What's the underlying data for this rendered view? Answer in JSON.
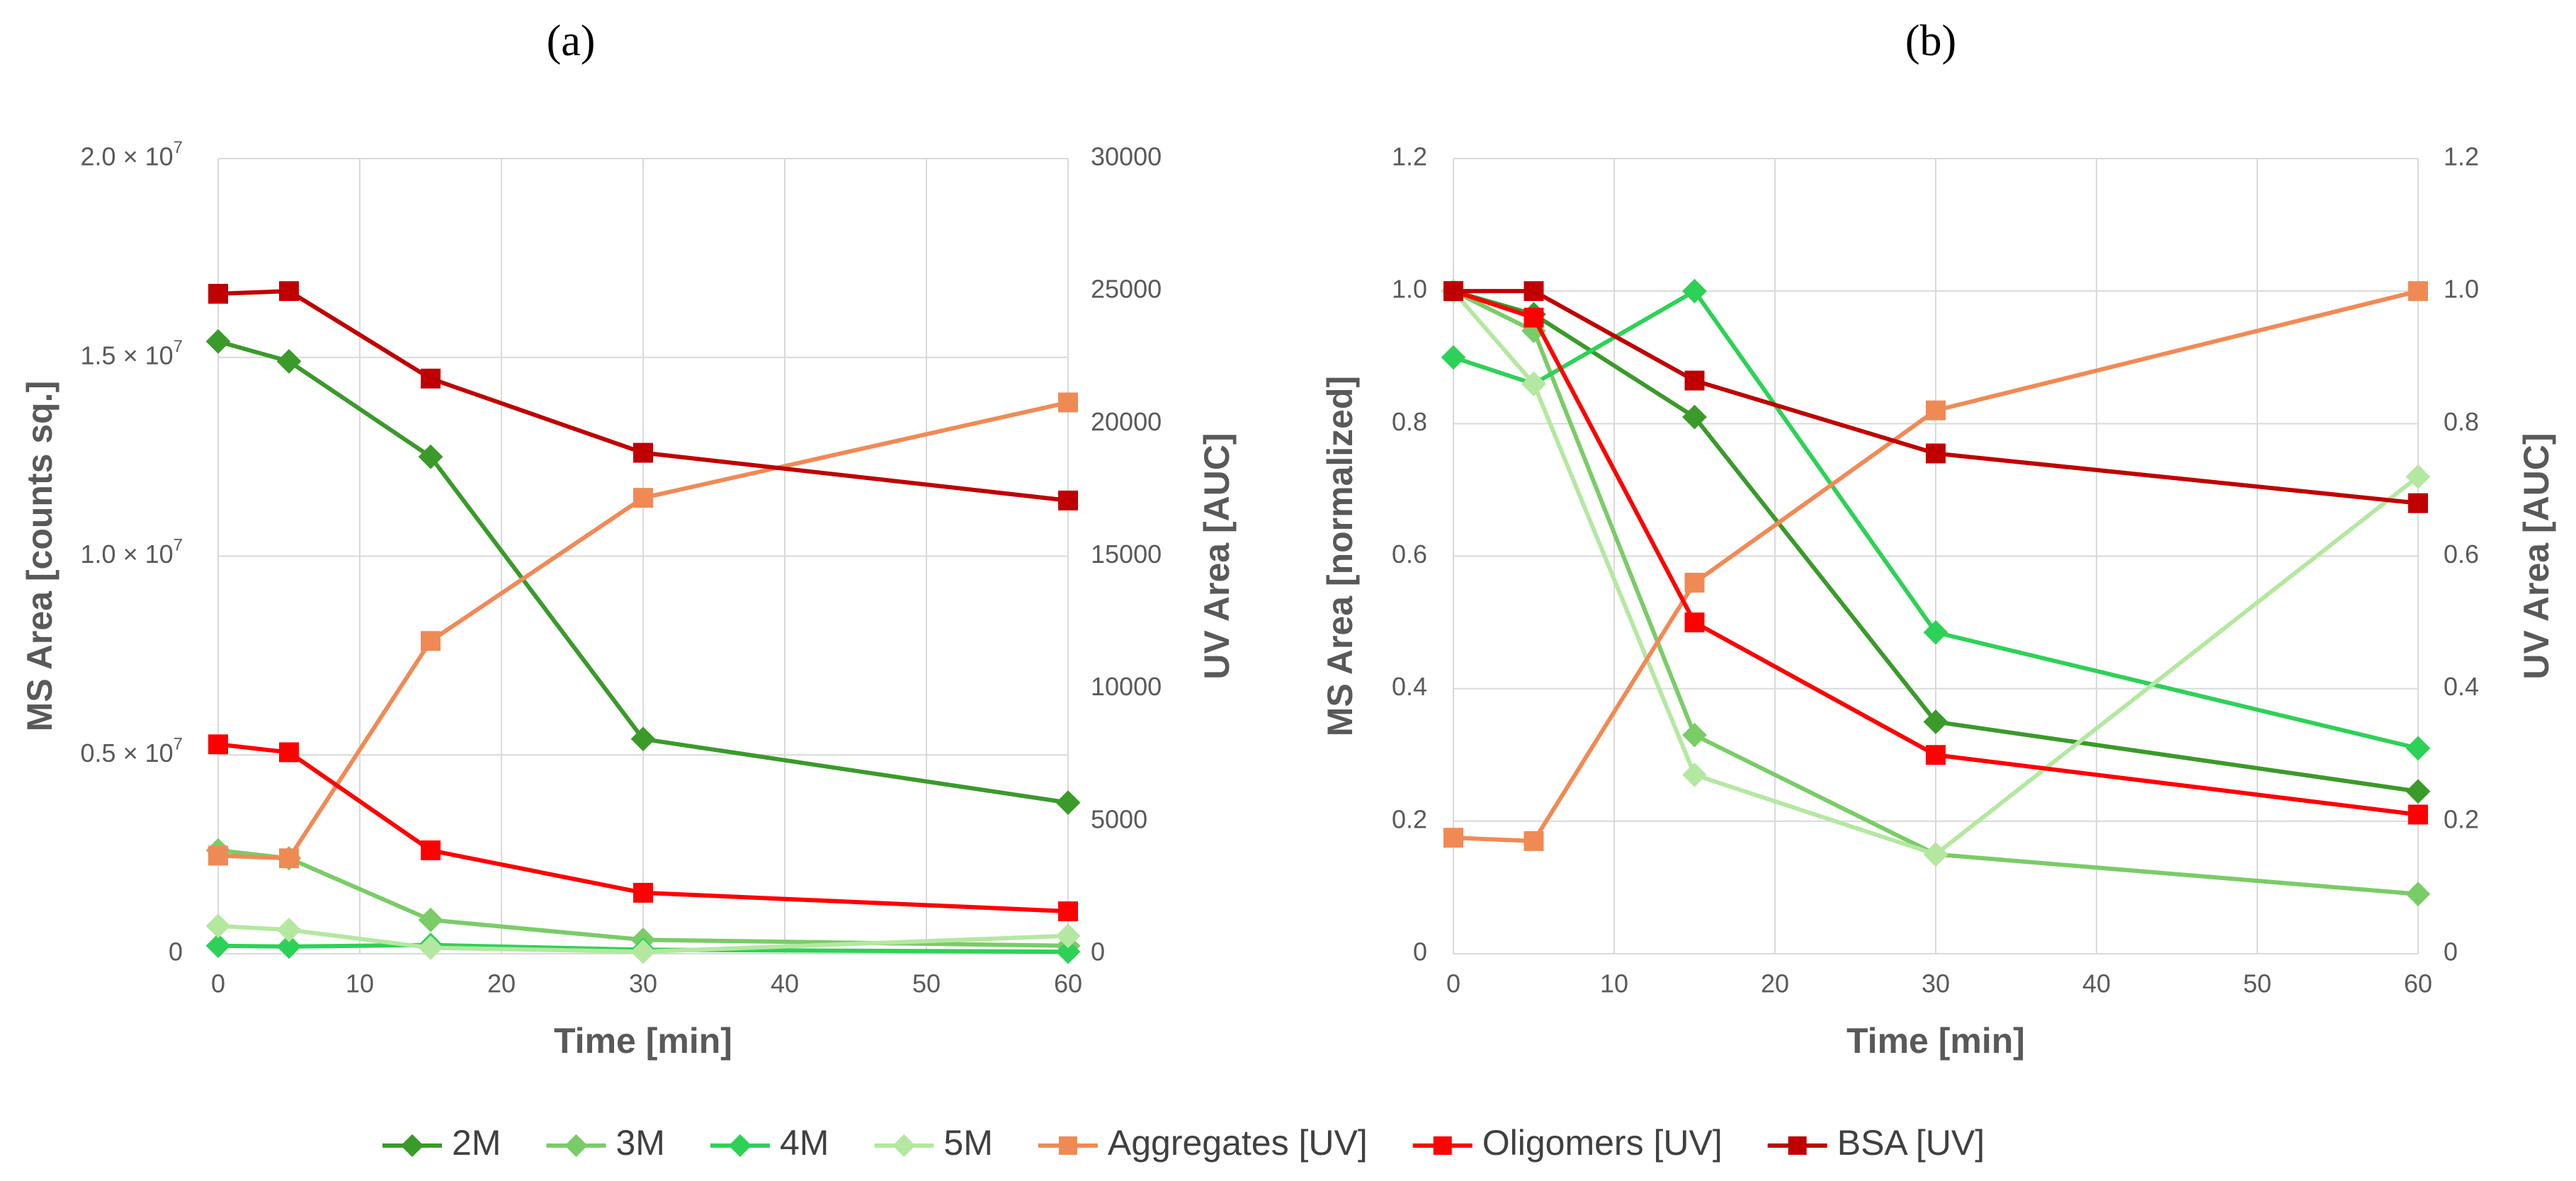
{
  "chart_data": [
    {
      "type": "line",
      "panel_label": "(a)",
      "xlabel": "Time [min]",
      "ylabel": "MS Area [counts sq.]",
      "y2label": "UV Area [AUC]",
      "xlim": [
        0,
        60
      ],
      "ylim": [
        0,
        20000000
      ],
      "y2lim": [
        0,
        30000
      ],
      "grid": true,
      "x_ticks": [
        "0",
        "10",
        "20",
        "30",
        "40",
        "50",
        "60"
      ],
      "y_ticks": [
        "0",
        "0.5 × 10^7",
        "1.0 × 10^7",
        "1.5 × 10^7",
        "2.0 × 10^7"
      ],
      "y2_ticks": [
        "0",
        "5000",
        "10000",
        "15000",
        "20000",
        "25000",
        "30000"
      ],
      "x": [
        0,
        5,
        15,
        30,
        60
      ],
      "series": [
        {
          "name": "2M",
          "axis": "left",
          "marker": "diamond",
          "color": "#3a9a2a",
          "values": [
            15400000,
            14900000,
            12500000,
            5400000,
            3800000
          ]
        },
        {
          "name": "3M",
          "axis": "left",
          "marker": "diamond",
          "color": "#7acc67",
          "values": [
            2600000,
            2400000,
            850000,
            350000,
            200000
          ]
        },
        {
          "name": "4M",
          "axis": "left",
          "marker": "diamond",
          "color": "#2ed157",
          "values": [
            200000,
            180000,
            220000,
            100000,
            50000
          ]
        },
        {
          "name": "5M",
          "axis": "left",
          "marker": "diamond",
          "color": "#b4e8a0",
          "values": [
            700000,
            600000,
            150000,
            50000,
            450000
          ]
        },
        {
          "name": "Aggregates [UV]",
          "axis": "right",
          "marker": "square",
          "color": "#f08a55",
          "values": [
            3700,
            3600,
            11800,
            17200,
            20800
          ]
        },
        {
          "name": "Oligomers [UV]",
          "axis": "right",
          "marker": "square",
          "color": "#ff0000",
          "values": [
            7900,
            7600,
            3900,
            2300,
            1600
          ]
        },
        {
          "name": "BSA [UV]",
          "axis": "right",
          "marker": "square",
          "color": "#c00000",
          "values": [
            24900,
            25000,
            21700,
            18900,
            17100
          ]
        }
      ]
    },
    {
      "type": "line",
      "panel_label": "(b)",
      "xlabel": "Time [min]",
      "ylabel": "MS Area [normalized]",
      "y2label": "UV Area [AUC]",
      "xlim": [
        0,
        60
      ],
      "ylim": [
        0,
        1.2
      ],
      "y2lim": [
        0,
        1.2
      ],
      "grid": true,
      "x_ticks": [
        "0",
        "10",
        "20",
        "30",
        "40",
        "50",
        "60"
      ],
      "y_ticks": [
        "0",
        "0.2",
        "0.4",
        "0.6",
        "0.8",
        "1.0",
        "1.2"
      ],
      "y2_ticks": [
        "0",
        "0.2",
        "0.4",
        "0.6",
        "0.8",
        "1.0",
        "1.2"
      ],
      "x": [
        0,
        5,
        15,
        30,
        60
      ],
      "series": [
        {
          "name": "2M",
          "axis": "left",
          "marker": "diamond",
          "color": "#3a9a2a",
          "values": [
            1.0,
            0.965,
            0.81,
            0.35,
            0.245
          ]
        },
        {
          "name": "3M",
          "axis": "left",
          "marker": "diamond",
          "color": "#7acc67",
          "values": [
            1.0,
            0.94,
            0.33,
            0.15,
            0.09
          ]
        },
        {
          "name": "4M",
          "axis": "left",
          "marker": "diamond",
          "color": "#2ed157",
          "values": [
            0.9,
            0.86,
            1.0,
            0.485,
            0.31
          ]
        },
        {
          "name": "5M",
          "axis": "left",
          "marker": "diamond",
          "color": "#b4e8a0",
          "values": [
            1.0,
            0.86,
            0.27,
            0.15,
            0.72
          ]
        },
        {
          "name": "Aggregates [UV]",
          "axis": "right",
          "marker": "square",
          "color": "#f08a55",
          "values": [
            0.175,
            0.17,
            0.56,
            0.82,
            1.0
          ]
        },
        {
          "name": "Oligomers [UV]",
          "axis": "right",
          "marker": "square",
          "color": "#ff0000",
          "values": [
            1.0,
            0.96,
            0.5,
            0.3,
            0.21
          ]
        },
        {
          "name": "BSA [UV]",
          "axis": "right",
          "marker": "square",
          "color": "#c00000",
          "values": [
            1.0,
            1.0,
            0.865,
            0.755,
            0.68
          ]
        }
      ]
    }
  ],
  "legend": [
    {
      "label": "2M",
      "color": "#3a9a2a",
      "marker": "diamond"
    },
    {
      "label": "3M",
      "color": "#7acc67",
      "marker": "diamond"
    },
    {
      "label": "4M",
      "color": "#2ed157",
      "marker": "diamond"
    },
    {
      "label": "5M",
      "color": "#b4e8a0",
      "marker": "diamond"
    },
    {
      "label": "Aggregates [UV]",
      "color": "#f08a55",
      "marker": "square"
    },
    {
      "label": "Oligomers [UV]",
      "color": "#ff0000",
      "marker": "square"
    },
    {
      "label": "BSA [UV]",
      "color": "#c00000",
      "marker": "square"
    }
  ]
}
